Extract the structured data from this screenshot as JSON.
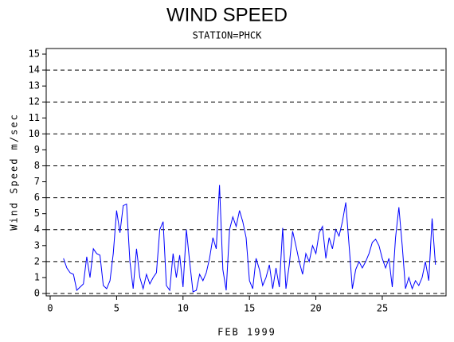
{
  "chart_data": {
    "type": "line",
    "title": "WIND SPEED",
    "subtitle": "STATION=PHCK",
    "x_label": "FEB 1999",
    "y_label": "Wind Speed m/sec",
    "xlim": [
      -0.3,
      29.8
    ],
    "xticks": [
      0,
      5,
      10,
      15,
      20,
      25
    ],
    "ylim": [
      -0.15,
      15.35
    ],
    "yticks": [
      0,
      1,
      2,
      3,
      4,
      5,
      6,
      7,
      8,
      9,
      10,
      11,
      12,
      13,
      14,
      15
    ],
    "grid_lines": [
      0,
      2,
      4,
      6,
      8,
      10,
      12,
      14
    ],
    "series": [
      {
        "color": "#0000ff",
        "x": [
          1,
          1.25,
          1.5,
          1.75,
          2,
          2.25,
          2.5,
          2.75,
          3,
          3.25,
          3.5,
          3.75,
          4,
          4.25,
          4.5,
          4.75,
          5,
          5.25,
          5.5,
          5.75,
          6,
          6.25,
          6.5,
          6.75,
          7,
          7.25,
          7.5,
          7.75,
          8,
          8.25,
          8.5,
          8.75,
          9,
          9.25,
          9.5,
          9.75,
          10,
          10.25,
          10.5,
          10.75,
          11,
          11.25,
          11.5,
          11.75,
          12,
          12.25,
          12.5,
          12.75,
          13,
          13.25,
          13.5,
          13.75,
          14,
          14.25,
          14.5,
          14.75,
          15,
          15.25,
          15.5,
          15.75,
          16,
          16.25,
          16.5,
          16.75,
          17,
          17.25,
          17.5,
          17.75,
          18,
          18.25,
          18.5,
          18.75,
          19,
          19.25,
          19.5,
          19.75,
          20,
          20.25,
          20.5,
          20.75,
          21,
          21.25,
          21.5,
          21.75,
          22,
          22.25,
          22.5,
          22.75,
          23,
          23.25,
          23.5,
          23.75,
          24,
          24.25,
          24.5,
          24.75,
          25,
          25.25,
          25.5,
          25.75,
          26,
          26.25,
          26.5,
          26.75,
          27,
          27.25,
          27.5,
          27.75,
          28,
          28.25,
          28.5,
          28.75,
          29
        ],
        "values": [
          2.2,
          1.6,
          1.3,
          1.2,
          0.2,
          0.4,
          0.6,
          2.3,
          1.0,
          2.8,
          2.5,
          2.4,
          0.5,
          0.3,
          0.8,
          2.5,
          5.2,
          3.8,
          5.5,
          5.6,
          2.0,
          0.3,
          2.8,
          1.0,
          0.3,
          1.2,
          0.6,
          1.0,
          1.3,
          4.0,
          4.5,
          0.5,
          0.2,
          2.5,
          1.0,
          2.4,
          0.4,
          4.0,
          2.0,
          0.1,
          0.2,
          1.2,
          0.8,
          1.3,
          2.2,
          3.5,
          2.8,
          6.8,
          1.5,
          0.2,
          4.0,
          4.8,
          4.2,
          5.2,
          4.5,
          3.5,
          0.8,
          0.3,
          2.2,
          1.5,
          0.5,
          1.0,
          1.8,
          0.3,
          1.6,
          0.4,
          4.1,
          0.3,
          1.8,
          3.9,
          3.0,
          2.0,
          1.2,
          2.5,
          2.0,
          3.0,
          2.5,
          3.8,
          4.2,
          2.2,
          3.5,
          2.8,
          4.0,
          3.6,
          4.5,
          5.7,
          3.0,
          0.3,
          1.5,
          2.0,
          1.6,
          2.0,
          2.5,
          3.2,
          3.4,
          3.0,
          2.2,
          1.6,
          2.2,
          0.4,
          3.5,
          5.4,
          3.0,
          0.3,
          1.0,
          0.3,
          0.8,
          0.5,
          1.0,
          2.0,
          0.8,
          4.7,
          1.8
        ]
      }
    ]
  }
}
